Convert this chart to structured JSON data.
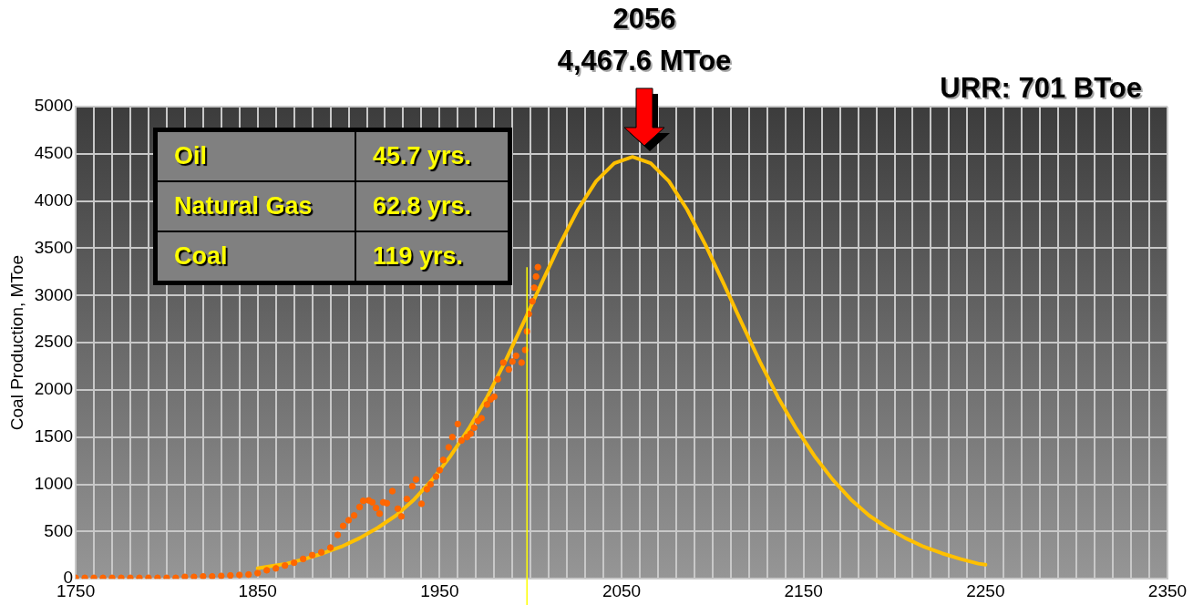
{
  "chart_data": [
    {
      "type": "scatter",
      "ylabel": "Coal Production, MToe",
      "xlim": [
        1750,
        2350
      ],
      "ylim": [
        0,
        5000
      ],
      "xticks": [
        1750,
        {
          "value": 1760,
          "label": null
        },
        {
          "value": 1770,
          "label": null
        },
        {
          "value": 1780,
          "label": null
        },
        {
          "value": 1790,
          "label": null
        },
        {
          "value": 1800,
          "label": null
        },
        {
          "value": 1810,
          "label": null
        },
        {
          "value": 1820,
          "label": null
        },
        {
          "value": 1830,
          "label": null
        },
        {
          "value": 1840,
          "label": null
        },
        1850,
        {
          "value": 1860,
          "label": null
        },
        {
          "value": 1870,
          "label": null
        },
        {
          "value": 1880,
          "label": null
        },
        {
          "value": 1890,
          "label": null
        },
        {
          "value": 1900,
          "label": null
        },
        {
          "value": 1910,
          "label": null
        },
        {
          "value": 1920,
          "label": null
        },
        {
          "value": 1930,
          "label": null
        },
        {
          "value": 1940,
          "label": null
        },
        1950,
        {
          "value": 1960,
          "label": null
        },
        {
          "value": 1970,
          "label": null
        },
        {
          "value": 1980,
          "label": null
        },
        {
          "value": 1990,
          "label": null
        },
        {
          "value": 2000,
          "label": null
        },
        {
          "value": 2010,
          "label": null
        },
        {
          "value": 2020,
          "label": null
        },
        {
          "value": 2030,
          "label": null
        },
        {
          "value": 2040,
          "label": null
        },
        2050,
        {
          "value": 2060,
          "label": null
        },
        {
          "value": 2070,
          "label": null
        },
        {
          "value": 2080,
          "label": null
        },
        {
          "value": 2090,
          "label": null
        },
        {
          "value": 2100,
          "label": null
        },
        {
          "value": 2110,
          "label": null
        },
        {
          "value": 2120,
          "label": null
        },
        {
          "value": 2130,
          "label": null
        },
        {
          "value": 2140,
          "label": null
        },
        2150,
        {
          "value": 2160,
          "label": null
        },
        {
          "value": 2170,
          "label": null
        },
        {
          "value": 2180,
          "label": null
        },
        {
          "value": 2190,
          "label": null
        },
        {
          "value": 2200,
          "label": null
        },
        {
          "value": 2210,
          "label": null
        },
        {
          "value": 2220,
          "label": null
        },
        {
          "value": 2230,
          "label": null
        },
        {
          "value": 2240,
          "label": null
        },
        2250,
        {
          "value": 2260,
          "label": null
        },
        {
          "value": 2270,
          "label": null
        },
        {
          "value": 2280,
          "label": null
        },
        {
          "value": 2290,
          "label": null
        },
        {
          "value": 2300,
          "label": null
        },
        {
          "value": 2310,
          "label": null
        },
        {
          "value": 2320,
          "label": null
        },
        {
          "value": 2330,
          "label": null
        },
        {
          "value": 2340,
          "label": null
        },
        2350
      ],
      "yticks": [
        0,
        500,
        1000,
        1500,
        2000,
        2500,
        3000,
        3500,
        4000,
        4500,
        5000
      ],
      "grid": true,
      "legend": false,
      "series": [
        {
          "type": "line",
          "color": "#ffc000",
          "marker": "none",
          "line_style": "solid",
          "x": [
            1850,
            1856,
            1866,
            1876,
            1886,
            1896,
            1906,
            1916,
            1926,
            1936,
            1946,
            1956,
            1966,
            1976,
            1986,
            1996,
            2006,
            2016,
            2026,
            2036,
            2046,
            2056,
            2066,
            2076,
            2086,
            2096,
            2106,
            2116,
            2126,
            2136,
            2146,
            2156,
            2166,
            2176,
            2186,
            2196,
            2206,
            2216,
            2226,
            2236,
            2246,
            2250
          ],
          "values": [
            110,
            130,
            160,
            210,
            270,
            340,
            430,
            540,
            670,
            840,
            1050,
            1300,
            1590,
            1920,
            2300,
            2710,
            3130,
            3540,
            3910,
            4210,
            4400,
            4467.6,
            4400,
            4210,
            3910,
            3540,
            3130,
            2710,
            2300,
            1920,
            1590,
            1300,
            1050,
            840,
            670,
            540,
            430,
            340,
            270,
            210,
            160,
            150
          ]
        },
        {
          "type": "scatter",
          "color": "#ff6600",
          "marker": "circle",
          "x": [
            1750,
            1755,
            1760,
            1765,
            1770,
            1775,
            1780,
            1785,
            1790,
            1795,
            1800,
            1805,
            1810,
            1815,
            1820,
            1825,
            1830,
            1835,
            1840,
            1845,
            1850,
            1855,
            1860,
            1865,
            1870,
            1875,
            1880,
            1885,
            1890,
            1894,
            1897,
            1900,
            1903,
            1906,
            1908,
            1911,
            1913,
            1915,
            1917,
            1919,
            1921,
            1924,
            1927,
            1929,
            1932,
            1935,
            1937,
            1940,
            1943,
            1945,
            1948,
            1950,
            1952,
            1955,
            1957,
            1960,
            1962,
            1965,
            1967,
            1969,
            1971,
            1973,
            1976,
            1978,
            1980,
            1982,
            1985,
            1988,
            1990,
            1992,
            1995,
            1997,
            1998,
            1999,
            2001,
            2002,
            2003,
            2004
          ],
          "values": [
            10,
            10,
            10,
            10,
            10,
            10,
            10,
            10,
            10,
            10,
            10,
            10,
            20,
            20,
            25,
            25,
            30,
            35,
            40,
            45,
            60,
            90,
            110,
            140,
            170,
            210,
            250,
            280,
            330,
            464,
            560,
            620,
            670,
            760,
            825,
            830,
            810,
            750,
            690,
            810,
            800,
            928,
            742,
            660,
            845,
            980,
            1052,
            794,
            948,
            1000,
            1082,
            1150,
            1258,
            1392,
            1500,
            1639,
            1464,
            1500,
            1536,
            1600,
            1670,
            1700,
            1845,
            1900,
            1928,
            2113,
            2289,
            2216,
            2300,
            2361,
            2289,
            2423,
            2619,
            2804,
            2938,
            3082,
            3200,
            3300
          ]
        }
      ],
      "ref_lines": [
        {
          "axis": "x",
          "value": 1998,
          "color": "#ffff00"
        }
      ],
      "annotations": [
        "2056",
        "4,467.6 MToe",
        "URR: 701 BToe"
      ]
    },
    {
      "type": "other",
      "annotations": [
        "Oil",
        "45.7 yrs.",
        "Natural Gas",
        "62.8 yrs.",
        "Coal",
        "119 yrs."
      ]
    }
  ]
}
